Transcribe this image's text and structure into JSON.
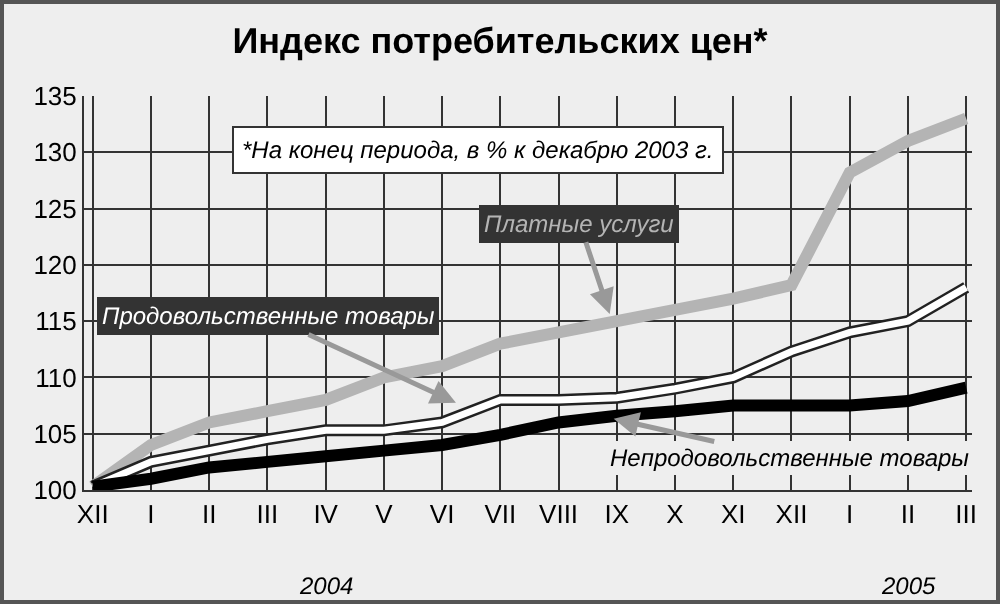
{
  "chart_data": {
    "type": "line",
    "title": "Индекс потребительских цен*",
    "annotations": [
      "*На конец периода, в % к декабрю 2003 г.",
      "2004",
      "2005"
    ],
    "categories": [
      "XII",
      "I",
      "II",
      "III",
      "IV",
      "V",
      "VI",
      "VII",
      "VIII",
      "IX",
      "X",
      "XI",
      "XII",
      "I",
      "II",
      "III"
    ],
    "series": [
      {
        "name": "Платные услуги",
        "color": "#b4b4b4",
        "values": [
          100.3,
          104,
          106,
          107,
          108,
          110,
          111,
          113,
          114,
          115,
          116,
          117,
          118.2,
          128.2,
          131,
          133
        ]
      },
      {
        "name": "Продовольственные товары",
        "color": "#ffffff",
        "values": [
          100.3,
          102.5,
          103.5,
          104.5,
          105.3,
          105.3,
          106,
          108,
          108,
          108.2,
          109,
          110,
          112.3,
          114,
          115,
          118
        ]
      },
      {
        "name": "Непродовольственные товары",
        "color": "#000000",
        "values": [
          100.3,
          101,
          102,
          102.5,
          103,
          103.5,
          104,
          104.9,
          106,
          106.6,
          107,
          107.5,
          107.5,
          107.5,
          107.9,
          109.1
        ]
      }
    ],
    "ylim": [
      100,
      135
    ],
    "yticks": [
      100,
      105,
      110,
      115,
      120,
      125,
      130,
      135
    ],
    "grid": true,
    "legend": false,
    "marker": "none",
    "line_style": "solid"
  }
}
